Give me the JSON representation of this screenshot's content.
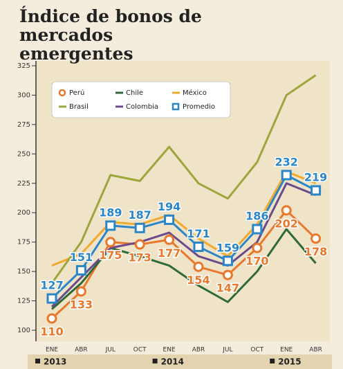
{
  "chart_data": {
    "type": "line",
    "title": "Índice de bonos de mercados emergentes",
    "categories": [
      "ENE",
      "ABR",
      "JUL",
      "OCT",
      "ENE",
      "ABR",
      "JUL",
      "OCT",
      "ENE",
      "ABR"
    ],
    "years": [
      "2013",
      "2014",
      "2015"
    ],
    "series": [
      {
        "name": "Perú",
        "color": "#e8782c",
        "marker": "circle",
        "labels": true,
        "values": [
          110,
          133,
          175,
          173,
          177,
          154,
          147,
          170,
          202,
          178
        ]
      },
      {
        "name": "Chile",
        "color": "#2e6a38",
        "marker": "none",
        "labels": false,
        "values": [
          118,
          140,
          170,
          163,
          155,
          138,
          124,
          150,
          186,
          157
        ]
      },
      {
        "name": "México",
        "color": "#f2aa2e",
        "marker": "none",
        "labels": false,
        "values": [
          155,
          165,
          192,
          190,
          198,
          178,
          163,
          190,
          235,
          225
        ]
      },
      {
        "name": "Brasil",
        "color": "#9ca63c",
        "marker": "none",
        "labels": false,
        "values": [
          140,
          175,
          232,
          227,
          256,
          225,
          212,
          243,
          300,
          317
        ]
      },
      {
        "name": "Colombia",
        "color": "#6b4a8c",
        "marker": "none",
        "labels": false,
        "values": [
          120,
          145,
          170,
          175,
          183,
          163,
          155,
          175,
          225,
          215
        ]
      },
      {
        "name": "Promedio",
        "color": "#2b86c8",
        "marker": "square",
        "labels": true,
        "values": [
          127,
          151,
          189,
          187,
          194,
          171,
          159,
          186,
          232,
          219
        ]
      }
    ],
    "ylim": [
      100,
      325
    ],
    "yticks": [
      100,
      125,
      150,
      175,
      200,
      225,
      250,
      275,
      300,
      325
    ]
  }
}
